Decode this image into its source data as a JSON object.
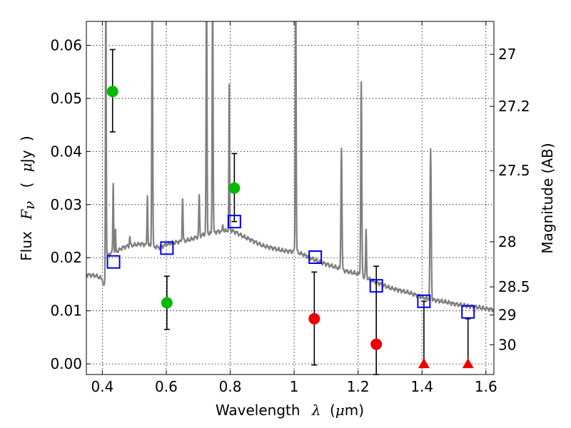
{
  "chart_data": {
    "type": "scatter",
    "title": "",
    "xlabel": {
      "parts": [
        "Wavelength",
        "λ",
        "(",
        "μ",
        "m)"
      ]
    },
    "ylabel": {
      "parts": [
        "Flux",
        "F",
        "ν",
        "(",
        "μ",
        "Jy",
        ")"
      ]
    },
    "ylabel_right": "Magnitude (AB)",
    "xlim": [
      0.35,
      1.625
    ],
    "ylim": [
      -0.002,
      0.0645
    ],
    "x_ticks": [
      0.4,
      0.6,
      0.8,
      1.0,
      1.2,
      1.4,
      1.6
    ],
    "x_tick_labels": [
      "0.4",
      "0.6",
      "0.8",
      "1",
      "1.2",
      "1.4",
      "1.6"
    ],
    "y_ticks": [
      0.0,
      0.01,
      0.02,
      0.03,
      0.04,
      0.05,
      0.06
    ],
    "y_tick_labels": [
      "0.00",
      "0.01",
      "0.02",
      "0.03",
      "0.04",
      "0.05",
      "0.06"
    ],
    "right_ticks": [
      {
        "flux": 0.0583,
        "label": "27"
      },
      {
        "flux": 0.0485,
        "label": "27.2"
      },
      {
        "flux": 0.0364,
        "label": "27.5"
      },
      {
        "flux": 0.023,
        "label": "28"
      },
      {
        "flux": 0.0145,
        "label": "28.5"
      },
      {
        "flux": 0.0092,
        "label": "29"
      },
      {
        "flux": 0.0036,
        "label": "30"
      }
    ],
    "grid": true,
    "colors": {
      "spectrum": "#808080",
      "detection": "#00bb00",
      "nondetection": "#ee0000",
      "model_photometry": "#0000ee",
      "errorbar": "#000000"
    },
    "spectrum": {
      "continuum": [
        [
          0.35,
          0.0168
        ],
        [
          0.38,
          0.0166
        ],
        [
          0.4,
          0.016
        ],
        [
          0.405,
          0.0145
        ],
        [
          0.408,
          0.0155
        ],
        [
          0.412,
          0.02
        ],
        [
          0.42,
          0.0205
        ],
        [
          0.43,
          0.021
        ],
        [
          0.44,
          0.0212
        ],
        [
          0.45,
          0.0213
        ],
        [
          0.46,
          0.0218
        ],
        [
          0.48,
          0.0222
        ],
        [
          0.5,
          0.0224
        ],
        [
          0.52,
          0.0226
        ],
        [
          0.54,
          0.0224
        ],
        [
          0.56,
          0.0221
        ],
        [
          0.58,
          0.0219
        ],
        [
          0.6,
          0.0225
        ],
        [
          0.62,
          0.0228
        ],
        [
          0.64,
          0.023
        ],
        [
          0.66,
          0.0232
        ],
        [
          0.68,
          0.0235
        ],
        [
          0.7,
          0.024
        ],
        [
          0.72,
          0.0244
        ],
        [
          0.74,
          0.0246
        ],
        [
          0.76,
          0.0249
        ],
        [
          0.78,
          0.025
        ],
        [
          0.8,
          0.0252
        ],
        [
          0.82,
          0.0247
        ],
        [
          0.84,
          0.024
        ],
        [
          0.86,
          0.0235
        ],
        [
          0.88,
          0.0229
        ],
        [
          0.9,
          0.0223
        ],
        [
          0.92,
          0.022
        ],
        [
          0.94,
          0.0217
        ],
        [
          0.96,
          0.0214
        ],
        [
          0.98,
          0.0212
        ],
        [
          1.0,
          0.0212
        ],
        [
          1.02,
          0.0208
        ],
        [
          1.04,
          0.0203
        ],
        [
          1.06,
          0.0197
        ],
        [
          1.08,
          0.0192
        ],
        [
          1.1,
          0.0188
        ],
        [
          1.12,
          0.0184
        ],
        [
          1.14,
          0.018
        ],
        [
          1.16,
          0.0175
        ],
        [
          1.18,
          0.0172
        ],
        [
          1.2,
          0.017
        ],
        [
          1.22,
          0.0164
        ],
        [
          1.24,
          0.0158
        ],
        [
          1.26,
          0.0153
        ],
        [
          1.28,
          0.0148
        ],
        [
          1.3,
          0.0143
        ],
        [
          1.32,
          0.014
        ],
        [
          1.34,
          0.0137
        ],
        [
          1.36,
          0.0134
        ],
        [
          1.38,
          0.013
        ],
        [
          1.4,
          0.0126
        ],
        [
          1.42,
          0.0122
        ],
        [
          1.44,
          0.012
        ],
        [
          1.46,
          0.0118
        ],
        [
          1.48,
          0.0116
        ],
        [
          1.5,
          0.0113
        ],
        [
          1.52,
          0.0111
        ],
        [
          1.54,
          0.0109
        ],
        [
          1.56,
          0.0108
        ],
        [
          1.58,
          0.0106
        ],
        [
          1.6,
          0.0104
        ],
        [
          1.625,
          0.0102
        ]
      ],
      "emission_lines": [
        {
          "x": 0.411,
          "peak": 0.07,
          "width": 0.0025
        },
        {
          "x": 0.434,
          "peak": 0.0343,
          "width": 0.0025
        },
        {
          "x": 0.441,
          "peak": 0.025,
          "width": 0.002
        },
        {
          "x": 0.486,
          "peak": 0.024,
          "width": 0.0025
        },
        {
          "x": 0.541,
          "peak": 0.032,
          "width": 0.0025
        },
        {
          "x": 0.556,
          "peak": 0.07,
          "width": 0.003
        },
        {
          "x": 0.651,
          "peak": 0.031,
          "width": 0.003
        },
        {
          "x": 0.703,
          "peak": 0.0317,
          "width": 0.003
        },
        {
          "x": 0.726,
          "peak": 0.07,
          "width": 0.003
        },
        {
          "x": 0.745,
          "peak": 0.07,
          "width": 0.003
        },
        {
          "x": 0.777,
          "peak": 0.0264,
          "width": 0.0025
        },
        {
          "x": 0.797,
          "peak": 0.0523,
          "width": 0.0025
        },
        {
          "x": 1.005,
          "peak": 0.07,
          "width": 0.003
        },
        {
          "x": 1.148,
          "peak": 0.041,
          "width": 0.0035
        },
        {
          "x": 1.21,
          "peak": 0.0528,
          "width": 0.0035
        },
        {
          "x": 1.225,
          "peak": 0.025,
          "width": 0.003
        },
        {
          "x": 1.427,
          "peak": 0.0405,
          "width": 0.004
        }
      ]
    },
    "series": [
      {
        "marker": "circle",
        "points": [
          {
            "x": 0.432,
            "y": 0.0513,
            "yerr_low": 0.0437,
            "yerr_high": 0.0592
          },
          {
            "x": 0.602,
            "y": 0.0115,
            "yerr_low": 0.0065,
            "yerr_high": 0.0165
          },
          {
            "x": 0.813,
            "y": 0.0331,
            "yerr_low": 0.0268,
            "yerr_high": 0.0396
          }
        ]
      },
      {
        "marker": "circle",
        "points": [
          {
            "x": 1.063,
            "y": 0.0085,
            "yerr_low": -0.0002,
            "yerr_high": 0.0173
          },
          {
            "x": 1.257,
            "y": 0.0037,
            "yerr_low": -0.002,
            "yerr_high": 0.0184
          }
        ]
      },
      {
        "marker": "triangle",
        "points": [
          {
            "x": 1.406,
            "y": 0.0,
            "yerr_low": 0.0,
            "yerr_high": 0.0118
          },
          {
            "x": 1.544,
            "y": 0.0,
            "yerr_low": 0.0,
            "yerr_high": 0.0085
          }
        ]
      },
      {
        "marker": "square-open",
        "points": [
          {
            "x": 0.435,
            "y": 0.0192
          },
          {
            "x": 0.602,
            "y": 0.0218
          },
          {
            "x": 0.813,
            "y": 0.0268
          },
          {
            "x": 1.066,
            "y": 0.0201
          },
          {
            "x": 1.257,
            "y": 0.0147
          },
          {
            "x": 1.406,
            "y": 0.0118
          },
          {
            "x": 1.544,
            "y": 0.0098
          }
        ]
      }
    ]
  }
}
